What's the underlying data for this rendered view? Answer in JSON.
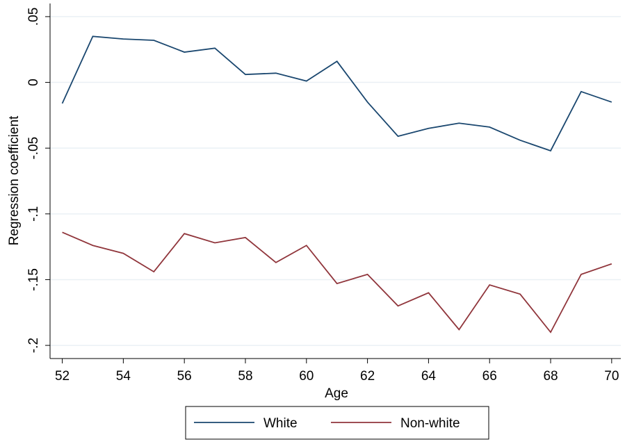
{
  "chart_data": {
    "type": "line",
    "x": [
      52,
      53,
      54,
      55,
      56,
      57,
      58,
      59,
      60,
      61,
      62,
      63,
      64,
      65,
      66,
      67,
      68,
      69,
      70
    ],
    "series": [
      {
        "name": "White",
        "color": "#1a476f",
        "values": [
          -0.016,
          0.035,
          0.033,
          0.032,
          0.023,
          0.026,
          0.006,
          0.007,
          0.001,
          0.016,
          -0.015,
          -0.041,
          -0.035,
          -0.031,
          -0.034,
          -0.044,
          -0.052,
          -0.007,
          -0.015
        ]
      },
      {
        "name": "Non-white",
        "color": "#90353b",
        "values": [
          -0.114,
          -0.124,
          -0.13,
          -0.144,
          -0.115,
          -0.122,
          -0.118,
          -0.137,
          -0.124,
          -0.153,
          -0.146,
          -0.17,
          -0.16,
          -0.188,
          -0.154,
          -0.161,
          -0.19,
          -0.146,
          -0.138
        ]
      }
    ],
    "x_label": "Age",
    "y_label": "Regression coefficient",
    "xlim": [
      51.6,
      70.3
    ],
    "xticks": [
      52,
      54,
      56,
      58,
      60,
      62,
      64,
      66,
      68,
      70
    ],
    "ylim": [
      -0.21,
      0.06
    ],
    "yticks": [
      {
        "value": 0.05,
        "label": ".05"
      },
      0,
      {
        "value": -0.05,
        "label": "-.05"
      },
      {
        "value": -0.1,
        "label": "-.1"
      },
      {
        "value": -0.15,
        "label": "-.15"
      },
      {
        "value": -0.2,
        "label": "-.2"
      }
    ],
    "grid": true,
    "legend": "bottom"
  }
}
